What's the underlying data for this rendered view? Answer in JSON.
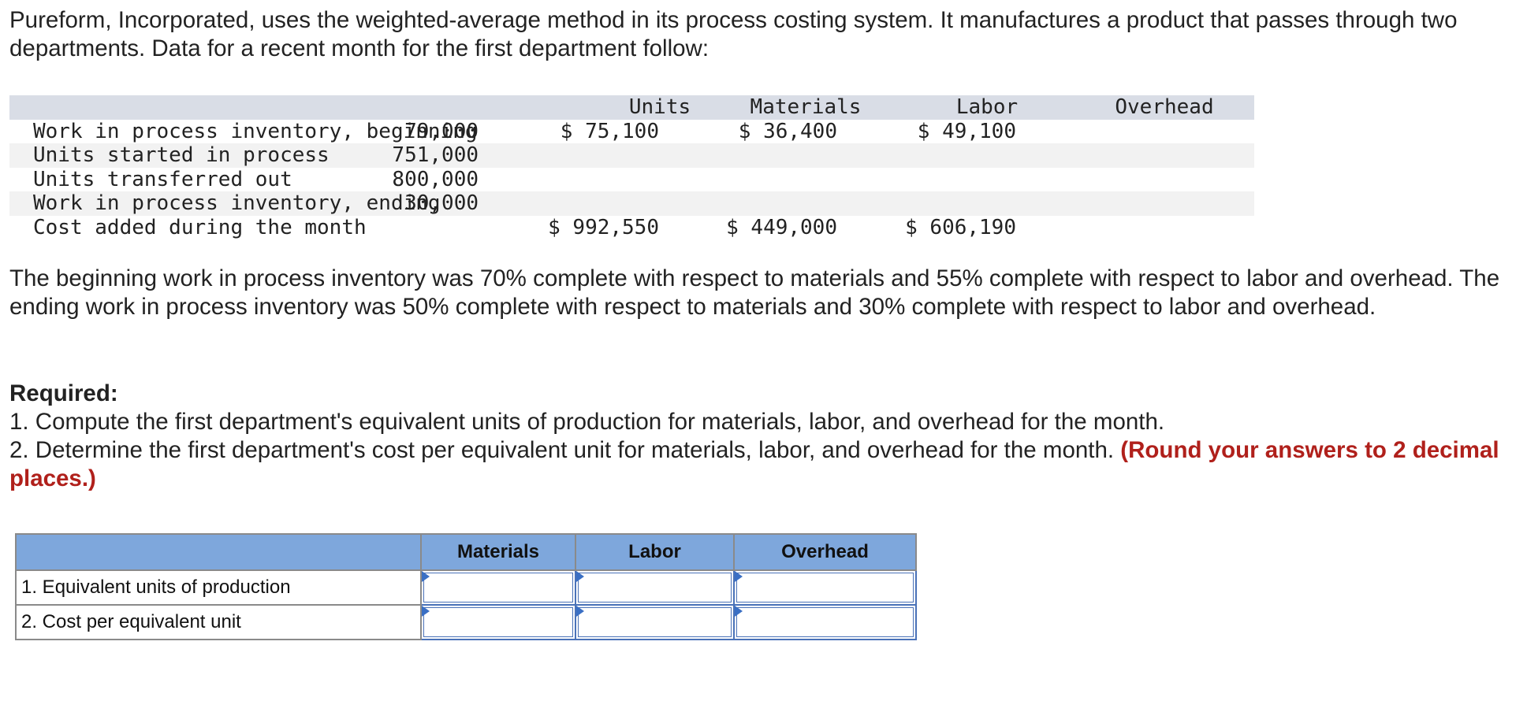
{
  "intro": "Pureform, Incorporated, uses the weighted-average method in its process costing system. It manufactures a product that passes through two departments. Data for a recent month for the first department follow:",
  "data_table": {
    "headers": {
      "units": "Units",
      "materials": "Materials",
      "labor": "Labor",
      "overhead": "Overhead"
    },
    "rows": [
      {
        "label": "Work in process inventory, beginning",
        "units": "79,000",
        "materials": "$ 75,100",
        "labor": "$ 36,400",
        "overhead": "$ 49,100"
      },
      {
        "label": "Units started in process",
        "units": "751,000",
        "materials": "",
        "labor": "",
        "overhead": ""
      },
      {
        "label": "Units transferred out",
        "units": "800,000",
        "materials": "",
        "labor": "",
        "overhead": ""
      },
      {
        "label": "Work in process inventory, ending",
        "units": "30,000",
        "materials": "",
        "labor": "",
        "overhead": ""
      },
      {
        "label": "Cost added during the month",
        "units": "",
        "materials": "$ 992,550",
        "labor": "$ 449,000",
        "overhead": "$ 606,190"
      }
    ]
  },
  "description": "The beginning work in process inventory was 70% complete with respect to materials and 55% complete with respect to labor and overhead. The ending work in process inventory was 50% complete with respect to materials and 30% complete with respect to labor and overhead.",
  "required": {
    "title": "Required:",
    "item1": "1. Compute the first department's equivalent units of production for materials, labor, and overhead for the month.",
    "item2": "2. Determine the first department's cost per equivalent unit for materials, labor, and overhead for the month.",
    "item2_note": "(Round your answers to 2 decimal places.)"
  },
  "answer_table": {
    "headers": [
      "",
      "Materials",
      "Labor",
      "Overhead"
    ],
    "rows": [
      {
        "label": "1. Equivalent units of production",
        "values": [
          "",
          "",
          ""
        ]
      },
      {
        "label": "2. Cost per equivalent unit",
        "values": [
          "",
          "",
          ""
        ]
      }
    ]
  },
  "colors": {
    "header_blue": "#7ea7dc",
    "note_red": "#b0201b",
    "input_border": "#4a72b8"
  }
}
